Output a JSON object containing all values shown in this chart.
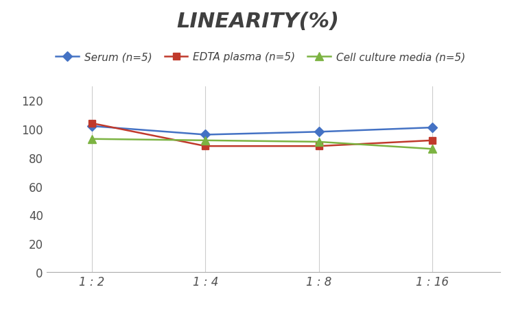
{
  "title": "LINEARITY(%)",
  "x_labels": [
    "1 : 2",
    "1 : 4",
    "1 : 8",
    "1 : 16"
  ],
  "x_values": [
    0,
    1,
    2,
    3
  ],
  "series": [
    {
      "label": "Serum (n=5)",
      "values": [
        102,
        96,
        98,
        101
      ],
      "color": "#4472C4",
      "marker": "D",
      "marker_size": 7
    },
    {
      "label": "EDTA plasma (n=5)",
      "values": [
        104,
        88,
        88,
        92
      ],
      "color": "#C0392B",
      "marker": "s",
      "marker_size": 7
    },
    {
      "label": "Cell culture media (n=5)",
      "values": [
        93,
        92,
        91,
        86
      ],
      "color": "#7CB342",
      "marker": "^",
      "marker_size": 8
    }
  ],
  "ylim": [
    0,
    130
  ],
  "yticks": [
    0,
    20,
    40,
    60,
    80,
    100,
    120
  ],
  "grid_color": "#CCCCCC",
  "background_color": "#FFFFFF",
  "title_fontsize": 22,
  "title_color": "#404040",
  "tick_label_fontsize": 12,
  "legend_fontsize": 11
}
